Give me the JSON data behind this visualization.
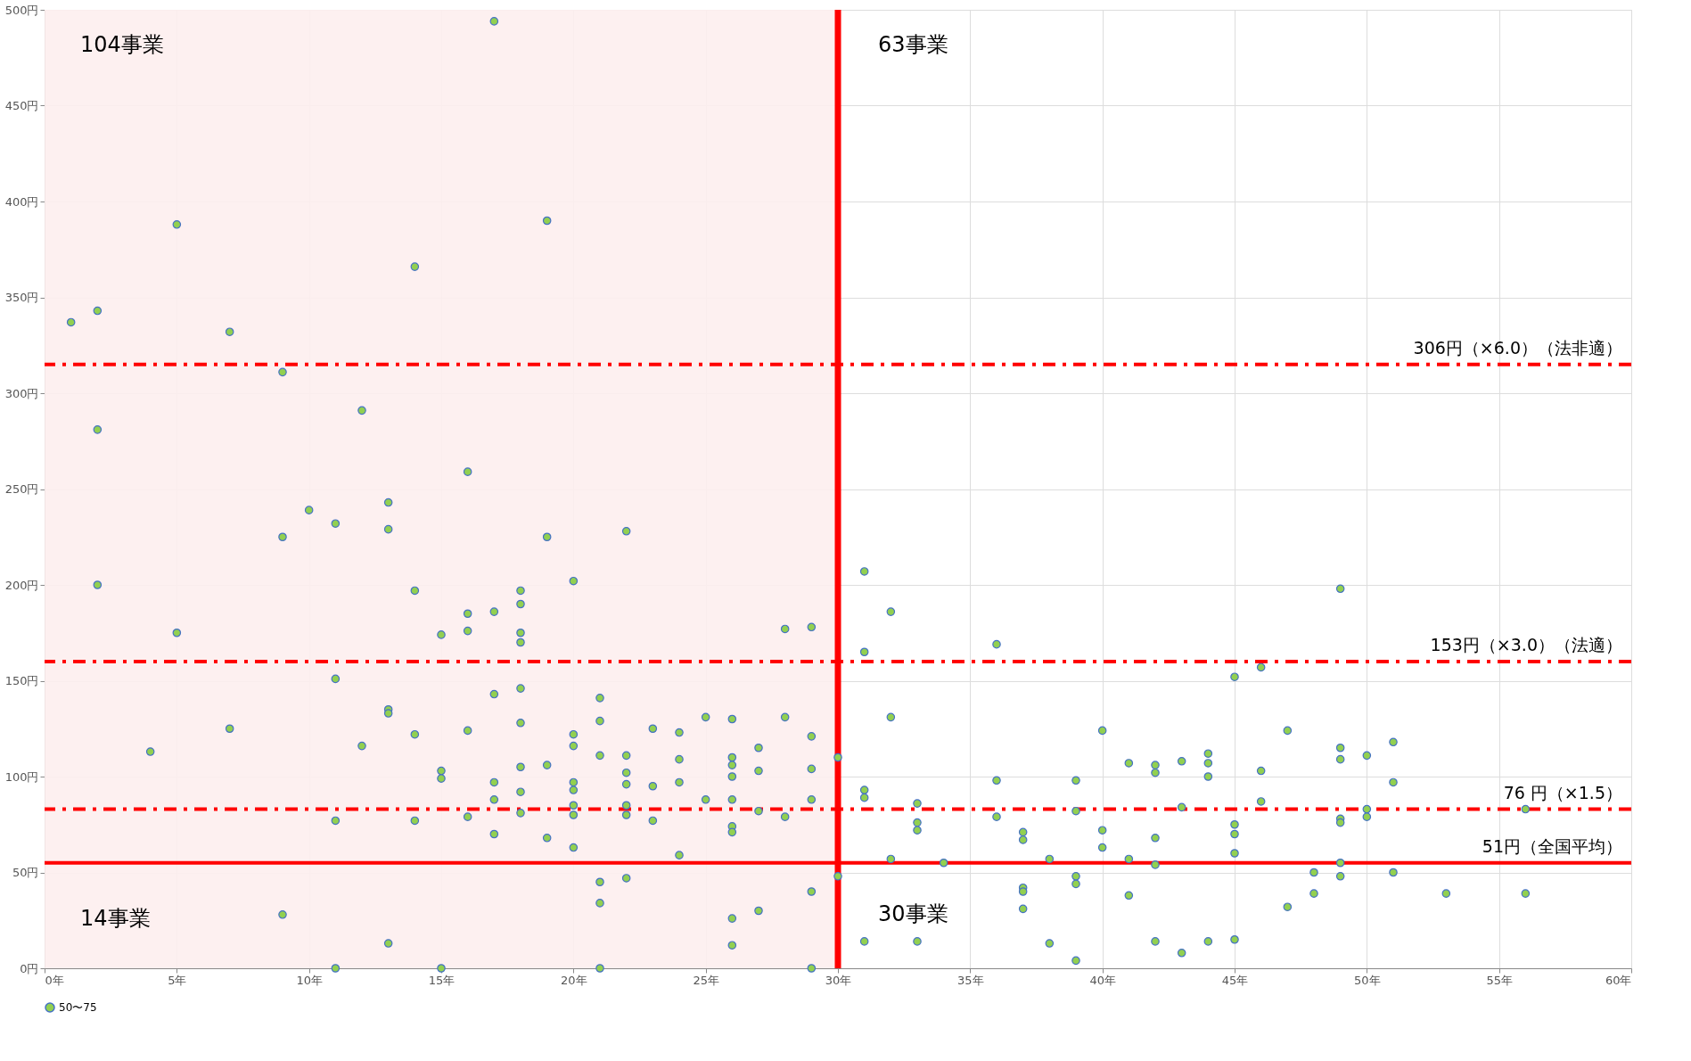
{
  "chart_data": {
    "type": "scatter",
    "series": [
      {
        "name": "50〜75",
        "color": "#92d050",
        "x": [
          1,
          2,
          2,
          2,
          4,
          5,
          5,
          7,
          7,
          9,
          9,
          9,
          10,
          11,
          11,
          11,
          11,
          12,
          12,
          13,
          13,
          13,
          13,
          13,
          14,
          14,
          14,
          14,
          15,
          15,
          15,
          15,
          16,
          16,
          16,
          16,
          16,
          17,
          17,
          17,
          17,
          17,
          17,
          18,
          18,
          18,
          18,
          18,
          18,
          18,
          18,
          18,
          19,
          19,
          19,
          19,
          20,
          20,
          20,
          20,
          20,
          20,
          20,
          20,
          21,
          21,
          21,
          21,
          21,
          21,
          22,
          22,
          22,
          22,
          22,
          22,
          22,
          23,
          23,
          23,
          24,
          24,
          24,
          24,
          25,
          25,
          26,
          26,
          26,
          26,
          26,
          26,
          26,
          26,
          26,
          27,
          27,
          27,
          27,
          28,
          28,
          28,
          29,
          29,
          29,
          29,
          29,
          29,
          30,
          30,
          31,
          31,
          31,
          31,
          31,
          32,
          32,
          32,
          33,
          33,
          33,
          33,
          34,
          36,
          36,
          36,
          37,
          37,
          37,
          37,
          37,
          38,
          38,
          39,
          39,
          39,
          39,
          39,
          40,
          40,
          40,
          41,
          41,
          41,
          42,
          42,
          42,
          42,
          42,
          43,
          43,
          43,
          44,
          44,
          44,
          44,
          45,
          45,
          45,
          45,
          45,
          46,
          46,
          46,
          47,
          47,
          48,
          48,
          49,
          49,
          49,
          49,
          49,
          49,
          49,
          50,
          50,
          50,
          51,
          51,
          51,
          53,
          56,
          56
        ],
        "values": [
          337,
          343,
          281,
          200,
          113,
          388,
          175,
          332,
          125,
          311,
          225,
          28,
          239,
          232,
          151,
          77,
          0,
          291,
          116,
          243,
          229,
          135,
          133,
          13,
          366,
          197,
          122,
          77,
          174,
          103,
          99,
          0,
          259,
          185,
          176,
          124,
          79,
          494,
          186,
          143,
          97,
          88,
          70,
          197,
          190,
          175,
          170,
          146,
          128,
          105,
          92,
          81,
          390,
          225,
          106,
          68,
          202,
          122,
          116,
          97,
          93,
          85,
          80,
          63,
          141,
          129,
          111,
          45,
          34,
          0,
          228,
          111,
          102,
          96,
          85,
          80,
          47,
          125,
          95,
          77,
          123,
          109,
          97,
          59,
          131,
          88,
          130,
          110,
          106,
          100,
          88,
          74,
          71,
          26,
          12,
          115,
          103,
          82,
          30,
          177,
          131,
          79,
          178,
          121,
          104,
          88,
          40,
          0,
          110,
          48,
          207,
          165,
          93,
          89,
          14,
          186,
          131,
          57,
          86,
          76,
          72,
          14,
          55,
          169,
          98,
          79,
          71,
          67,
          42,
          40,
          31,
          57,
          13,
          98,
          82,
          48,
          44,
          4,
          124,
          72,
          63,
          107,
          57,
          38,
          106,
          102,
          68,
          54,
          14,
          108,
          84,
          8,
          112,
          107,
          100,
          14,
          152,
          75,
          70,
          60,
          15,
          157,
          103,
          87,
          124,
          32,
          50,
          39,
          198,
          115,
          109,
          78,
          76,
          55,
          48,
          111,
          83,
          79,
          118,
          97,
          50,
          39,
          83,
          39
        ]
      }
    ],
    "xlim": [
      0,
      60
    ],
    "ylim": [
      0,
      500
    ],
    "xticks": [
      {
        "value": 0,
        "label": "0年"
      },
      {
        "value": 5,
        "label": "5年"
      },
      {
        "value": 10,
        "label": "10年"
      },
      {
        "value": 15,
        "label": "15年"
      },
      {
        "value": 20,
        "label": "20年"
      },
      {
        "value": 25,
        "label": "25年"
      },
      {
        "value": 30,
        "label": "30年"
      },
      {
        "value": 35,
        "label": "35年"
      },
      {
        "value": 40,
        "label": "40年"
      },
      {
        "value": 45,
        "label": "45年"
      },
      {
        "value": 50,
        "label": "50年"
      },
      {
        "value": 55,
        "label": "55年"
      },
      {
        "value": 60,
        "label": "60年"
      }
    ],
    "yticks": [
      {
        "value": 0,
        "label": "0円"
      },
      {
        "value": 50,
        "label": "50円"
      },
      {
        "value": 100,
        "label": "100円"
      },
      {
        "value": 150,
        "label": "150円"
      },
      {
        "value": 200,
        "label": "200円"
      },
      {
        "value": 250,
        "label": "250円"
      },
      {
        "value": 300,
        "label": "300円"
      },
      {
        "value": 350,
        "label": "350円"
      },
      {
        "value": 400,
        "label": "400円"
      },
      {
        "value": 450,
        "label": "450円"
      },
      {
        "value": 500,
        "label": "500円"
      }
    ],
    "grid": true,
    "legend": "bottom",
    "marker": "circle",
    "ref_lines": [
      {
        "axis": "y",
        "value": 315,
        "label": "306円（×6.0）（法非適）",
        "color": "#ff0000",
        "line_style": "dashdot"
      },
      {
        "axis": "y",
        "value": 160,
        "label": "153円（×3.0）（法適）",
        "color": "#ff0000",
        "line_style": "dashdot"
      },
      {
        "axis": "y",
        "value": 83,
        "label": "76 円（×1.5）",
        "color": "#ff0000",
        "line_style": "dashdot"
      },
      {
        "axis": "y",
        "value": 55,
        "label": "51円（全国平均）",
        "color": "#ff0000",
        "line_style": "solid"
      },
      {
        "axis": "x",
        "value": 30,
        "label": null,
        "color": "#ff0000",
        "line_style": "solid"
      }
    ],
    "bands": [
      {
        "axis": "x",
        "from": 0,
        "to": 30,
        "label": null,
        "color": "#fdeeee"
      }
    ],
    "annotations": [
      "104事業",
      "63事業",
      "14事業",
      "30事業"
    ]
  }
}
